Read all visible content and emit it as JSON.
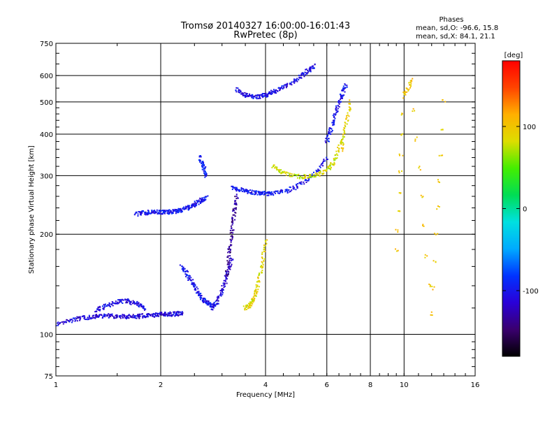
{
  "header": {
    "title_line1": "Tromsø 20140327 16:00:00-16:01:43",
    "title_line2": "RwPretec (8p)",
    "stats_title": "Phases",
    "stats_o": "mean, sd,O:  -96.6, 15.8",
    "stats_x": "mean, sd,X:   84.1, 21.1"
  },
  "colorbar": {
    "unit_label": "[deg]",
    "ticks": [
      {
        "value": 100,
        "label": "100"
      },
      {
        "value": 0,
        "label": "0"
      },
      {
        "value": -100,
        "label": "-100"
      }
    ],
    "range": [
      -180,
      180
    ],
    "colors": [
      "#000000",
      "#3a006e",
      "#2a00d8",
      "#0033ff",
      "#00aaff",
      "#00e0e0",
      "#00dd55",
      "#44ee00",
      "#dddd00",
      "#ffb000",
      "#ff4400",
      "#ff0000"
    ]
  },
  "chart_data": {
    "type": "scatter",
    "title": "Tromsø 20140327 16:00:00-16:01:43",
    "subtitle": "RwPretec (8p)",
    "xlabel": "Frequency [MHz]",
    "ylabel": "Stationary phase Virtual Height [km]",
    "x_scale": "log",
    "y_scale": "log",
    "xlim": [
      1,
      16
    ],
    "ylim": [
      75,
      750
    ],
    "x_ticks": [
      {
        "value": 1,
        "label": "1"
      },
      {
        "value": 2,
        "label": "2"
      },
      {
        "value": 4,
        "label": "4"
      },
      {
        "value": 6,
        "label": "6"
      },
      {
        "value": 8,
        "label": "8"
      },
      {
        "value": 10,
        "label": "10"
      },
      {
        "value": 16,
        "label": "16"
      }
    ],
    "y_ticks": [
      {
        "value": 750,
        "label": "750"
      },
      {
        "value": 600,
        "label": "600"
      },
      {
        "value": 500,
        "label": "500"
      },
      {
        "value": 400,
        "label": "400"
      },
      {
        "value": 300,
        "label": "300"
      },
      {
        "value": 200,
        "label": "200"
      },
      {
        "value": 100,
        "label": "100"
      },
      {
        "value": 75,
        "label": "75"
      }
    ],
    "grid": true,
    "color_by": "phase [deg]",
    "series": [
      {
        "x": [
          1.0,
          1.1,
          1.2,
          1.3,
          1.4,
          1.5,
          1.6,
          1.7,
          1.8,
          1.9,
          2.0,
          2.1,
          2.2,
          2.3
        ],
        "y": [
          107,
          110,
          112,
          113,
          114,
          113,
          113,
          113,
          114,
          114,
          115,
          115,
          115,
          116
        ],
        "phase": -110
      },
      {
        "x": [
          1.3,
          1.4,
          1.5,
          1.6,
          1.7,
          1.8
        ],
        "y": [
          118,
          122,
          125,
          126,
          124,
          120
        ],
        "phase": -105
      },
      {
        "x": [
          1.7,
          1.8,
          1.9,
          2.0,
          2.1,
          2.2,
          2.3,
          2.4,
          2.5,
          2.6,
          2.7
        ],
        "y": [
          230,
          232,
          233,
          233,
          233,
          234,
          236,
          240,
          246,
          252,
          258
        ],
        "phase": -100
      },
      {
        "x": [
          2.3,
          2.4,
          2.5,
          2.6,
          2.7,
          2.8
        ],
        "y": [
          160,
          150,
          140,
          130,
          125,
          122
        ],
        "phase": -100
      },
      {
        "x": [
          2.6,
          2.65,
          2.7
        ],
        "y": [
          340,
          320,
          300
        ],
        "phase": -90
      },
      {
        "x": [
          2.8,
          2.9,
          3.0,
          3.1,
          3.2
        ],
        "y": [
          120,
          125,
          135,
          150,
          170
        ],
        "phase": -110
      },
      {
        "x": [
          3.1,
          3.15,
          3.2,
          3.25,
          3.3
        ],
        "y": [
          150,
          175,
          200,
          230,
          260
        ],
        "phase": -135
      },
      {
        "x": [
          3.2,
          3.4,
          3.6,
          3.8,
          4.0,
          4.2,
          4.6,
          5.0,
          5.5,
          6.0
        ],
        "y": [
          275,
          272,
          268,
          266,
          265,
          266,
          270,
          280,
          300,
          340
        ],
        "phase": -100
      },
      {
        "x": [
          3.3,
          3.5,
          3.7,
          3.9,
          4.1,
          4.3,
          4.6,
          5.0,
          5.3,
          5.5
        ],
        "y": [
          545,
          525,
          518,
          520,
          528,
          540,
          560,
          590,
          620,
          640
        ],
        "phase": -105
      },
      {
        "x": [
          6.0,
          6.2,
          6.4,
          6.6,
          6.8
        ],
        "y": [
          380,
          420,
          470,
          520,
          560
        ],
        "phase": -100
      },
      {
        "x": [
          3.5,
          3.6,
          3.7,
          3.8,
          3.9,
          4.0
        ],
        "y": [
          120,
          122,
          128,
          140,
          160,
          190
        ],
        "phase": 90
      },
      {
        "x": [
          4.2,
          4.5,
          5.0,
          5.5,
          6.0,
          6.3,
          6.6
        ],
        "y": [
          320,
          305,
          298,
          300,
          310,
          330,
          380
        ],
        "phase": 80
      },
      {
        "x": [
          6.6,
          6.8,
          7.0
        ],
        "y": [
          360,
          420,
          500
        ],
        "phase": 90
      },
      {
        "x": [
          9.5,
          10.0,
          10.5,
          12.0,
          13.0
        ],
        "y": [
          180,
          520,
          580,
          115,
          500
        ],
        "phase": 100
      }
    ]
  }
}
